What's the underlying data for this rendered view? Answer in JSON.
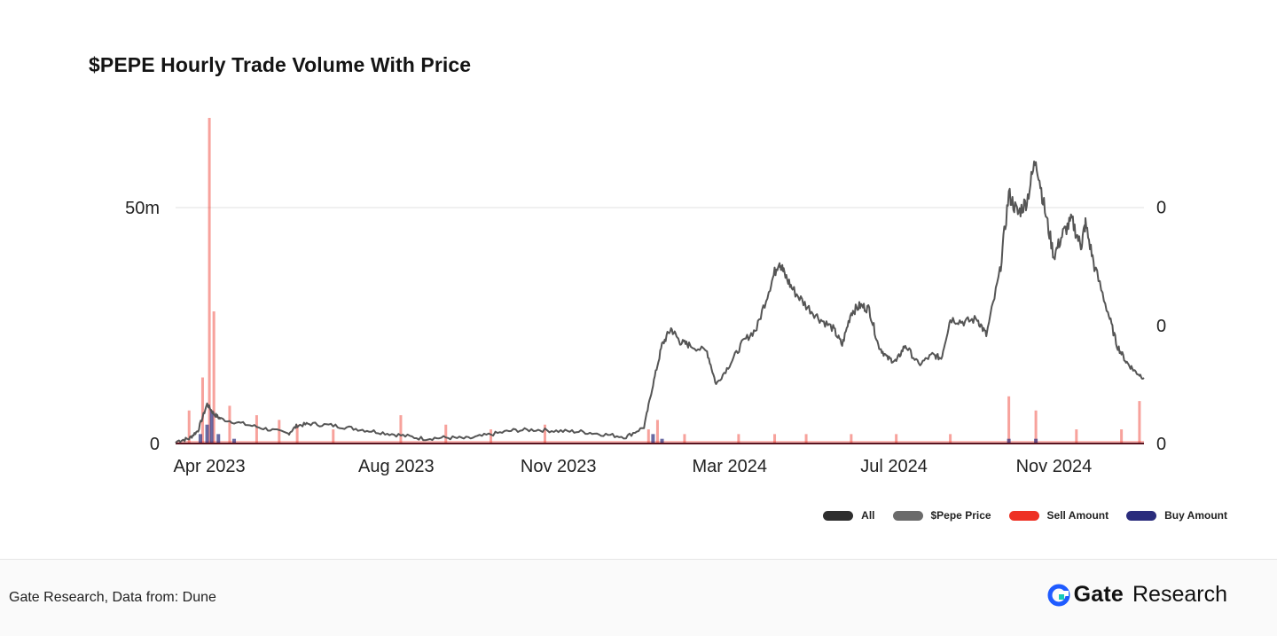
{
  "chart_data": {
    "type": "line",
    "title": "$PEPE Hourly Trade Volume With Price",
    "xlabel": "",
    "ylabel": "",
    "x_tick_labels": [
      "Apr 2023",
      "Aug 2023",
      "Nov 2023",
      "Mar 2024",
      "Jul 2024",
      "Nov 2024"
    ],
    "y_left_tick_labels": [
      "0",
      "50m"
    ],
    "y_left_ticks": [
      0,
      50
    ],
    "ylim_left_millions": [
      0,
      69
    ],
    "y_right_tick_labels": [
      "0",
      "0",
      "0"
    ],
    "x_range_months": [
      0,
      21.5
    ],
    "grid": true,
    "legend_position": "bottom-right",
    "legend": [
      "All",
      "$Pepe Price",
      "Sell Amount",
      "Buy Amount"
    ],
    "series": [
      {
        "name": "$Pepe Price",
        "unit": "relative price (0-100 scale)",
        "points": [
          [
            0.0,
            0.2
          ],
          [
            0.05,
            0.8
          ],
          [
            0.3,
            1.5
          ],
          [
            0.5,
            4.0
          ],
          [
            0.7,
            12.0
          ],
          [
            0.85,
            9.0
          ],
          [
            1.0,
            7.5
          ],
          [
            1.5,
            6.0
          ],
          [
            2.0,
            4.5
          ],
          [
            2.5,
            3.0
          ],
          [
            2.7,
            5.5
          ],
          [
            3.0,
            6.0
          ],
          [
            3.5,
            5.5
          ],
          [
            4.0,
            4.5
          ],
          [
            4.5,
            3.5
          ],
          [
            5.0,
            2.5
          ],
          [
            5.5,
            1.5
          ],
          [
            6.0,
            1.8
          ],
          [
            6.5,
            1.5
          ],
          [
            7.0,
            2.8
          ],
          [
            7.5,
            4.0
          ],
          [
            8.0,
            4.2
          ],
          [
            8.5,
            3.8
          ],
          [
            9.0,
            3.6
          ],
          [
            9.5,
            2.8
          ],
          [
            10.0,
            2.0
          ],
          [
            10.4,
            5.0
          ],
          [
            10.6,
            18.0
          ],
          [
            10.8,
            30.0
          ],
          [
            11.0,
            35.0
          ],
          [
            11.2,
            31.0
          ],
          [
            11.4,
            30.0
          ],
          [
            11.8,
            28.0
          ],
          [
            12.0,
            18.0
          ],
          [
            12.3,
            24.0
          ],
          [
            12.6,
            31.0
          ],
          [
            12.9,
            35.0
          ],
          [
            13.2,
            48.0
          ],
          [
            13.4,
            56.0
          ],
          [
            13.5,
            52.0
          ],
          [
            13.7,
            47.0
          ],
          [
            14.0,
            42.0
          ],
          [
            14.3,
            38.0
          ],
          [
            14.6,
            35.0
          ],
          [
            14.8,
            30.0
          ],
          [
            15.0,
            40.0
          ],
          [
            15.2,
            42.0
          ],
          [
            15.4,
            41.0
          ],
          [
            15.6,
            30.0
          ],
          [
            15.8,
            26.0
          ],
          [
            16.0,
            25.0
          ],
          [
            16.2,
            30.0
          ],
          [
            16.5,
            24.0
          ],
          [
            16.8,
            27.0
          ],
          [
            17.0,
            26.0
          ],
          [
            17.2,
            38.0
          ],
          [
            17.5,
            37.0
          ],
          [
            17.8,
            38.0
          ],
          [
            18.0,
            33.0
          ],
          [
            18.3,
            52.0
          ],
          [
            18.5,
            76.0
          ],
          [
            18.7,
            70.0
          ],
          [
            18.9,
            74.0
          ],
          [
            19.1,
            87.0
          ],
          [
            19.3,
            71.0
          ],
          [
            19.5,
            57.0
          ],
          [
            19.7,
            64.0
          ],
          [
            19.9,
            68.0
          ],
          [
            20.1,
            60.0
          ],
          [
            20.2,
            67.0
          ],
          [
            20.4,
            54.0
          ],
          [
            20.7,
            40.0
          ],
          [
            20.9,
            30.0
          ],
          [
            21.1,
            25.0
          ],
          [
            21.3,
            22.0
          ],
          [
            21.5,
            20.0
          ]
        ]
      },
      {
        "name": "Sell Amount",
        "unit": "USD millions",
        "spikes": [
          [
            0.3,
            7
          ],
          [
            0.6,
            14
          ],
          [
            0.75,
            69
          ],
          [
            0.85,
            28
          ],
          [
            1.2,
            8
          ],
          [
            1.8,
            6
          ],
          [
            2.3,
            5
          ],
          [
            2.7,
            4
          ],
          [
            3.5,
            3
          ],
          [
            5.0,
            6
          ],
          [
            6.0,
            4
          ],
          [
            7.0,
            3
          ],
          [
            8.2,
            4
          ],
          [
            10.5,
            3
          ],
          [
            10.7,
            5
          ],
          [
            11.3,
            2
          ],
          [
            12.5,
            2
          ],
          [
            13.3,
            2
          ],
          [
            14.0,
            2
          ],
          [
            15.0,
            2
          ],
          [
            16.0,
            2
          ],
          [
            17.2,
            2
          ],
          [
            18.5,
            10
          ],
          [
            19.1,
            7
          ],
          [
            20.0,
            3
          ],
          [
            21.0,
            3
          ],
          [
            21.4,
            9
          ]
        ]
      },
      {
        "name": "Buy Amount",
        "unit": "USD millions",
        "spikes": [
          [
            0.55,
            2
          ],
          [
            0.7,
            4
          ],
          [
            0.8,
            7
          ],
          [
            0.95,
            2
          ],
          [
            1.3,
            1
          ],
          [
            10.6,
            2
          ],
          [
            10.8,
            1
          ],
          [
            18.5,
            1
          ],
          [
            19.1,
            1
          ]
        ]
      }
    ]
  },
  "legend_items": [
    {
      "label": "All",
      "color": "#2e2e2e"
    },
    {
      "label": "$Pepe Price",
      "color": "#6b6b6b"
    },
    {
      "label": "Sell Amount",
      "color": "#ee3124"
    },
    {
      "label": "Buy Amount",
      "color": "#2a2c7c"
    }
  ],
  "footer": {
    "source": "Gate Research, Data from: Dune",
    "brand_gate": "Gate",
    "brand_research": "Research"
  },
  "colors": {
    "price_line": "#555555",
    "sell": "#ee3124",
    "buy": "#2a2c7c",
    "baseline": "#5a1420",
    "grid": "#e0e0e0",
    "brand_blue": "#1f5bff"
  }
}
